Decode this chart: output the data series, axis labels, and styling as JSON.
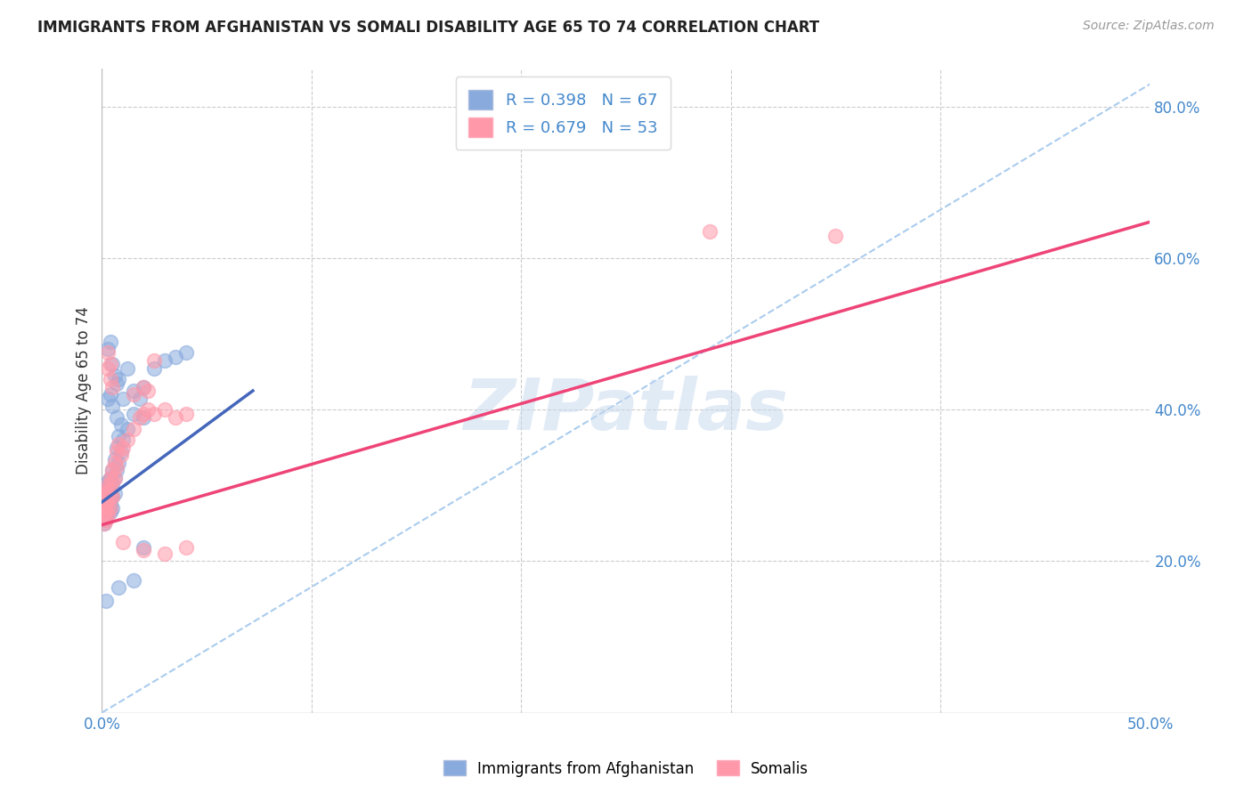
{
  "title": "IMMIGRANTS FROM AFGHANISTAN VS SOMALI DISABILITY AGE 65 TO 74 CORRELATION CHART",
  "source": "Source: ZipAtlas.com",
  "ylabel": "Disability Age 65 to 74",
  "xlim": [
    0.0,
    0.5
  ],
  "ylim": [
    0.0,
    0.85
  ],
  "xtick_vals": [
    0.0,
    0.1,
    0.2,
    0.3,
    0.4,
    0.5
  ],
  "xtick_labels": [
    "0.0%",
    "",
    "",
    "",
    "",
    "50.0%"
  ],
  "ytick_vals": [
    0.2,
    0.4,
    0.6,
    0.8
  ],
  "ytick_labels": [
    "20.0%",
    "40.0%",
    "60.0%",
    "80.0%"
  ],
  "grid_color": "#cccccc",
  "background_color": "#ffffff",
  "watermark": "ZIPatlas",
  "legend_label_afg": "R = 0.398   N = 67",
  "legend_label_som": "R = 0.679   N = 53",
  "legend_bottom_afg": "Immigrants from Afghanistan",
  "legend_bottom_som": "Somalis",
  "afg_color": "#88aadd",
  "som_color": "#ff99aa",
  "afg_line_color": "#4466bb",
  "som_line_color": "#ee4477",
  "diag_line_color": "#aaccee",
  "afg_line": [
    [
      0.0,
      0.278
    ],
    [
      0.072,
      0.425
    ]
  ],
  "som_line": [
    [
      0.0,
      0.248
    ],
    [
      0.5,
      0.648
    ]
  ],
  "diag_line": [
    [
      0.0,
      0.0
    ],
    [
      0.5,
      0.83
    ]
  ],
  "afg_points": [
    [
      0.001,
      0.295
    ],
    [
      0.001,
      0.29
    ],
    [
      0.001,
      0.285
    ],
    [
      0.001,
      0.28
    ],
    [
      0.001,
      0.275
    ],
    [
      0.001,
      0.27
    ],
    [
      0.001,
      0.265
    ],
    [
      0.001,
      0.26
    ],
    [
      0.001,
      0.255
    ],
    [
      0.001,
      0.25
    ],
    [
      0.002,
      0.3
    ],
    [
      0.002,
      0.29
    ],
    [
      0.002,
      0.285
    ],
    [
      0.002,
      0.28
    ],
    [
      0.002,
      0.27
    ],
    [
      0.002,
      0.265
    ],
    [
      0.002,
      0.26
    ],
    [
      0.003,
      0.305
    ],
    [
      0.003,
      0.295
    ],
    [
      0.003,
      0.285
    ],
    [
      0.003,
      0.275
    ],
    [
      0.003,
      0.265
    ],
    [
      0.004,
      0.31
    ],
    [
      0.004,
      0.295
    ],
    [
      0.004,
      0.285
    ],
    [
      0.004,
      0.275
    ],
    [
      0.004,
      0.265
    ],
    [
      0.005,
      0.32
    ],
    [
      0.005,
      0.3
    ],
    [
      0.005,
      0.285
    ],
    [
      0.005,
      0.27
    ],
    [
      0.006,
      0.335
    ],
    [
      0.006,
      0.31
    ],
    [
      0.006,
      0.29
    ],
    [
      0.007,
      0.35
    ],
    [
      0.007,
      0.32
    ],
    [
      0.008,
      0.365
    ],
    [
      0.008,
      0.33
    ],
    [
      0.009,
      0.345
    ],
    [
      0.01,
      0.36
    ],
    [
      0.012,
      0.375
    ],
    [
      0.015,
      0.395
    ],
    [
      0.018,
      0.415
    ],
    [
      0.02,
      0.43
    ],
    [
      0.025,
      0.455
    ],
    [
      0.03,
      0.465
    ],
    [
      0.035,
      0.47
    ],
    [
      0.04,
      0.475
    ],
    [
      0.003,
      0.48
    ],
    [
      0.004,
      0.49
    ],
    [
      0.005,
      0.46
    ],
    [
      0.006,
      0.445
    ],
    [
      0.007,
      0.435
    ],
    [
      0.008,
      0.44
    ],
    [
      0.01,
      0.415
    ],
    [
      0.012,
      0.455
    ],
    [
      0.015,
      0.425
    ],
    [
      0.02,
      0.39
    ],
    [
      0.003,
      0.415
    ],
    [
      0.004,
      0.42
    ],
    [
      0.005,
      0.405
    ],
    [
      0.007,
      0.39
    ],
    [
      0.009,
      0.38
    ],
    [
      0.002,
      0.148
    ],
    [
      0.008,
      0.165
    ],
    [
      0.015,
      0.175
    ],
    [
      0.02,
      0.218
    ]
  ],
  "som_points": [
    [
      0.001,
      0.29
    ],
    [
      0.001,
      0.28
    ],
    [
      0.001,
      0.27
    ],
    [
      0.001,
      0.26
    ],
    [
      0.001,
      0.25
    ],
    [
      0.002,
      0.295
    ],
    [
      0.002,
      0.285
    ],
    [
      0.002,
      0.275
    ],
    [
      0.002,
      0.265
    ],
    [
      0.002,
      0.255
    ],
    [
      0.003,
      0.3
    ],
    [
      0.003,
      0.29
    ],
    [
      0.003,
      0.28
    ],
    [
      0.003,
      0.27
    ],
    [
      0.003,
      0.26
    ],
    [
      0.004,
      0.31
    ],
    [
      0.004,
      0.295
    ],
    [
      0.004,
      0.285
    ],
    [
      0.004,
      0.27
    ],
    [
      0.005,
      0.32
    ],
    [
      0.005,
      0.305
    ],
    [
      0.005,
      0.285
    ],
    [
      0.006,
      0.33
    ],
    [
      0.006,
      0.31
    ],
    [
      0.007,
      0.345
    ],
    [
      0.007,
      0.325
    ],
    [
      0.008,
      0.355
    ],
    [
      0.009,
      0.34
    ],
    [
      0.01,
      0.35
    ],
    [
      0.012,
      0.36
    ],
    [
      0.015,
      0.375
    ],
    [
      0.018,
      0.39
    ],
    [
      0.02,
      0.395
    ],
    [
      0.022,
      0.4
    ],
    [
      0.025,
      0.395
    ],
    [
      0.03,
      0.4
    ],
    [
      0.035,
      0.39
    ],
    [
      0.04,
      0.395
    ],
    [
      0.015,
      0.42
    ],
    [
      0.02,
      0.43
    ],
    [
      0.022,
      0.425
    ],
    [
      0.003,
      0.475
    ],
    [
      0.004,
      0.46
    ],
    [
      0.025,
      0.465
    ],
    [
      0.003,
      0.455
    ],
    [
      0.004,
      0.44
    ],
    [
      0.005,
      0.43
    ],
    [
      0.02,
      0.215
    ],
    [
      0.03,
      0.21
    ],
    [
      0.01,
      0.225
    ],
    [
      0.04,
      0.218
    ],
    [
      0.35,
      0.63
    ],
    [
      0.29,
      0.635
    ]
  ]
}
